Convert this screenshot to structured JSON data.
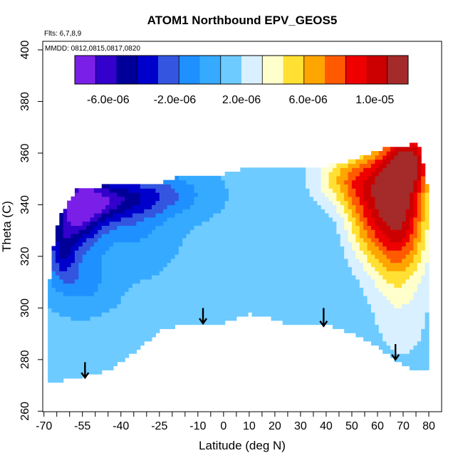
{
  "chart_data": {
    "type": "heatmap",
    "title": "ATOM1 Northbound EPV_GEOS5",
    "annotations": [
      "Flts: 6,7,8,9",
      "MMDD: 0812,0815,0817,0820"
    ],
    "xlabel": "Latitude (deg N)",
    "ylabel": "Theta (C)",
    "xlim": [
      -70,
      80
    ],
    "ylim": [
      260,
      400
    ],
    "x_ticks_labeled": [
      "-70",
      "-55",
      "-40",
      "-25",
      "-10",
      "0",
      "10",
      "20",
      "30",
      "40",
      "50",
      "60",
      "70",
      "80"
    ],
    "x_tick_values": [
      -70,
      -55,
      -40,
      -25,
      -10,
      0,
      10,
      20,
      30,
      40,
      50,
      60,
      70,
      80
    ],
    "y_tick_values": [
      260,
      280,
      300,
      320,
      340,
      360,
      380,
      400
    ],
    "y_ticks_labeled": [
      "260",
      "280",
      "300",
      "320",
      "340",
      "360",
      "380",
      "400"
    ],
    "colorbar": {
      "range": [
        -8e-06,
        1.2e-05
      ],
      "tick_labels": [
        "-6.0e-06",
        "-2.0e-06",
        "2.0e-06",
        "6.0e-06",
        "1.0e-05"
      ],
      "tick_values": [
        -6e-06,
        -2e-06,
        2e-06,
        6e-06,
        1e-05
      ],
      "colors": [
        "#7a1fe8",
        "#3300cc",
        "#000099",
        "#0000cc",
        "#3355e0",
        "#1e90ff",
        "#36aaff",
        "#6ecbff",
        "#d8f0ff",
        "#ffffcc",
        "#ffe033",
        "#ffa500",
        "#ff5a00",
        "#ee0000",
        "#cc0000",
        "#a52a2a"
      ]
    },
    "domain_top": [
      [
        -68,
        310
      ],
      [
        -67,
        317
      ],
      [
        -66,
        327
      ],
      [
        -65,
        332
      ],
      [
        -64,
        335
      ],
      [
        -62,
        338
      ],
      [
        -60,
        342
      ],
      [
        -57,
        346
      ],
      [
        -50,
        346
      ],
      [
        -45,
        348
      ],
      [
        -35,
        348
      ],
      [
        -25,
        348
      ],
      [
        -18,
        351
      ],
      [
        -10,
        351
      ],
      [
        0,
        352
      ],
      [
        8,
        354
      ],
      [
        20,
        354
      ],
      [
        30,
        354
      ],
      [
        40,
        355
      ],
      [
        50,
        357
      ],
      [
        58,
        360
      ],
      [
        65,
        363
      ],
      [
        70,
        363
      ],
      [
        73,
        363
      ],
      [
        75,
        365
      ],
      [
        77,
        362
      ],
      [
        78,
        355
      ],
      [
        79,
        350
      ],
      [
        80,
        344
      ],
      [
        80.5,
        333
      ],
      [
        80.5,
        300
      ]
    ],
    "domain_bottom": [
      [
        80.5,
        300
      ],
      [
        80.5,
        290
      ],
      [
        80,
        276
      ],
      [
        77,
        276
      ],
      [
        72,
        277
      ],
      [
        67,
        280
      ],
      [
        60,
        285
      ],
      [
        50,
        290
      ],
      [
        42,
        293
      ],
      [
        33,
        293
      ],
      [
        25,
        294
      ],
      [
        18,
        296
      ],
      [
        10,
        298
      ],
      [
        0,
        294
      ],
      [
        -8,
        294
      ],
      [
        -18,
        293
      ],
      [
        -25,
        291
      ],
      [
        -30,
        287
      ],
      [
        -35,
        283
      ],
      [
        -40,
        279
      ],
      [
        -45,
        276
      ],
      [
        -52,
        274
      ],
      [
        -58,
        273
      ],
      [
        -62,
        272
      ],
      [
        -65,
        272
      ],
      [
        -68,
        272
      ]
    ],
    "field": {
      "background_value": 1e-06,
      "features": [
        {
          "x": -57,
          "y": 338,
          "sx": 7,
          "sy": 10,
          "amp": -7.5e-06
        },
        {
          "x": -45,
          "y": 342,
          "sx": 10,
          "sy": 6,
          "amp": -5e-06
        },
        {
          "x": -25,
          "y": 344,
          "sx": 12,
          "sy": 6,
          "amp": -3e-06
        },
        {
          "x": -63,
          "y": 322,
          "sx": 4,
          "sy": 8,
          "amp": -4e-06
        },
        {
          "x": -55,
          "y": 310,
          "sx": 8,
          "sy": 7,
          "amp": -2e-06
        },
        {
          "x": -35,
          "y": 330,
          "sx": 10,
          "sy": 10,
          "amp": -1.5e-06
        },
        {
          "x": 68,
          "y": 340,
          "sx": 8,
          "sy": 20,
          "amp": 1.05e-05
        },
        {
          "x": 74,
          "y": 358,
          "sx": 6,
          "sy": 8,
          "amp": 5e-06
        },
        {
          "x": 50,
          "y": 350,
          "sx": 10,
          "sy": 8,
          "amp": 5e-06
        },
        {
          "x": 55,
          "y": 335,
          "sx": 6,
          "sy": 12,
          "amp": 3.5e-06
        },
        {
          "x": 70,
          "y": 290,
          "sx": 10,
          "sy": 14,
          "amp": 1e-06
        }
      ],
      "samples": []
    },
    "obs_points": [],
    "arrows": [
      {
        "lat": -54,
        "theta_top": 279,
        "theta_bottom": 273
      },
      {
        "lat": -8,
        "theta_top": 300,
        "theta_bottom": 294
      },
      {
        "lat": 39,
        "theta_top": 300,
        "theta_bottom": 293
      },
      {
        "lat": 67,
        "theta_top": 286,
        "theta_bottom": 280
      }
    ]
  }
}
